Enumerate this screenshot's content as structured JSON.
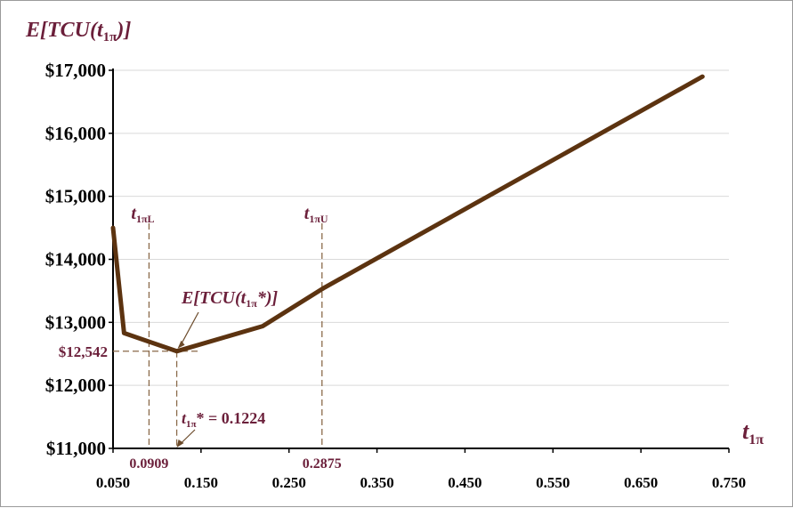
{
  "chart_data": {
    "type": "line",
    "ylabel": "E[TCU(t1π)]",
    "xlabel": "t1π",
    "xlim": [
      0.05,
      0.75
    ],
    "ylim": [
      11000,
      17000
    ],
    "x_ticks": [
      "0.050",
      "0.150",
      "0.250",
      "0.350",
      "0.450",
      "0.550",
      "0.650",
      "0.750"
    ],
    "y_ticks": [
      "$11,000",
      "$12,000",
      "$13,000",
      "$14,000",
      "$15,000",
      "$16,000",
      "$17,000"
    ],
    "grid": "horizontal",
    "line_color": "#5c3310",
    "accent_color": "#6b1f3a",
    "series": [
      {
        "x": [
          0.05,
          0.0625,
          0.1224,
          0.22,
          0.29,
          0.72
        ],
        "y": [
          14500,
          12830,
          12542,
          12940,
          13550,
          16900
        ]
      }
    ],
    "annotations": {
      "t_low": {
        "x": 0.0909,
        "value_label": "0.0909",
        "name": "t1πL"
      },
      "t_up": {
        "x": 0.2875,
        "value_label": "0.2875",
        "name": "t1πU"
      },
      "optimum": {
        "x": 0.1224,
        "y": 12542,
        "y_label": "$12,542",
        "point_label": "E[TCU(t1π*)]",
        "x_label": "t1π* = 0.1224"
      }
    }
  }
}
